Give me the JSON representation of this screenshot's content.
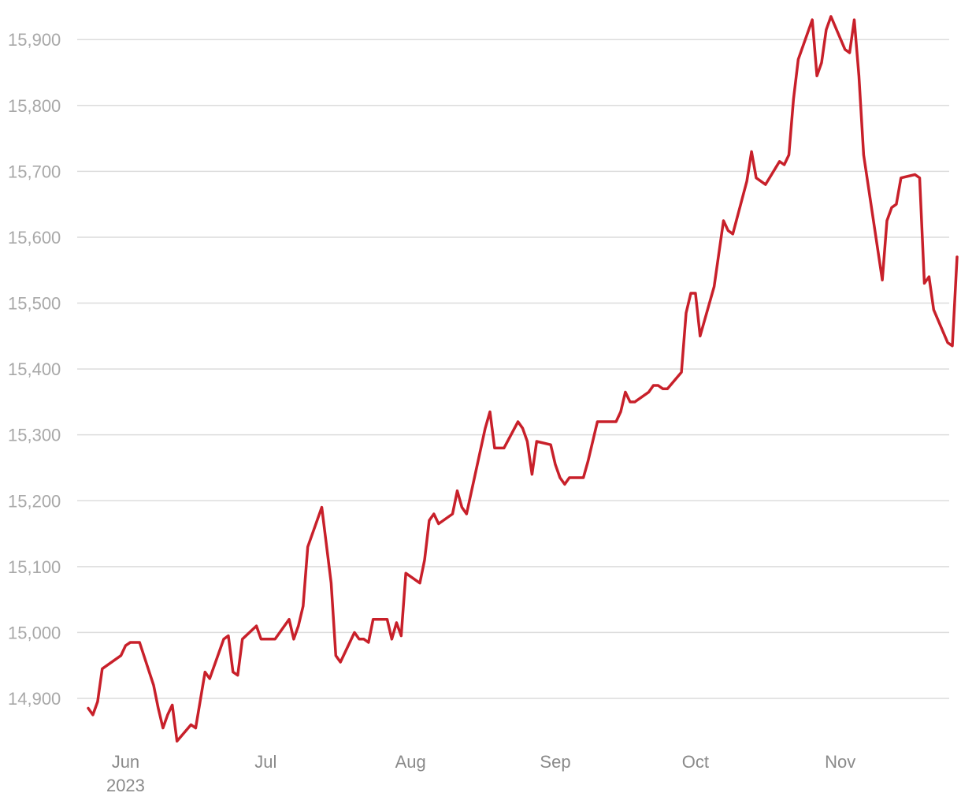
{
  "chart_data": {
    "type": "line",
    "title": "",
    "xlabel": "",
    "ylabel": "",
    "ylim": [
      14840,
      15940
    ],
    "y_ticks": [
      14900,
      15000,
      15100,
      15200,
      15300,
      15400,
      15500,
      15600,
      15700,
      15800,
      15900
    ],
    "y_tick_labels": [
      "14,900",
      "15,000",
      "15,100",
      "15,200",
      "15,300",
      "15,400",
      "15,500",
      "15,600",
      "15,700",
      "15,800",
      "15,900"
    ],
    "x_range": [
      "2023-05-24",
      "2023-11-27"
    ],
    "x_ticks": [
      {
        "date": "2023-06-01",
        "label": "Jun",
        "sublabel": "2023"
      },
      {
        "date": "2023-07-01",
        "label": "Jul",
        "sublabel": ""
      },
      {
        "date": "2023-08-01",
        "label": "Aug",
        "sublabel": ""
      },
      {
        "date": "2023-09-01",
        "label": "Sep",
        "sublabel": ""
      },
      {
        "date": "2023-10-01",
        "label": "Oct",
        "sublabel": ""
      },
      {
        "date": "2023-11-01",
        "label": "Nov",
        "sublabel": ""
      }
    ],
    "grid": true,
    "legend": "none",
    "series": [
      {
        "color": "#c8202a",
        "points": [
          [
            "2023-05-24",
            14885
          ],
          [
            "2023-05-25",
            14875
          ],
          [
            "2023-05-26",
            14895
          ],
          [
            "2023-05-27",
            14945
          ],
          [
            "2023-05-31",
            14965
          ],
          [
            "2023-06-01",
            14980
          ],
          [
            "2023-06-02",
            14985
          ],
          [
            "2023-06-03",
            14985
          ],
          [
            "2023-06-04",
            14985
          ],
          [
            "2023-06-07",
            14920
          ],
          [
            "2023-06-08",
            14885
          ],
          [
            "2023-06-09",
            14855
          ],
          [
            "2023-06-10",
            14875
          ],
          [
            "2023-06-11",
            14890
          ],
          [
            "2023-06-12",
            14835
          ],
          [
            "2023-06-15",
            14860
          ],
          [
            "2023-06-16",
            14855
          ],
          [
            "2023-06-18",
            14940
          ],
          [
            "2023-06-19",
            14930
          ],
          [
            "2023-06-22",
            14990
          ],
          [
            "2023-06-23",
            14995
          ],
          [
            "2023-06-24",
            14940
          ],
          [
            "2023-06-25",
            14935
          ],
          [
            "2023-06-26",
            14990
          ],
          [
            "2023-06-29",
            15010
          ],
          [
            "2023-06-30",
            14990
          ],
          [
            "2023-07-02",
            14990
          ],
          [
            "2023-07-03",
            14990
          ],
          [
            "2023-07-06",
            15020
          ],
          [
            "2023-07-07",
            14990
          ],
          [
            "2023-07-08",
            15010
          ],
          [
            "2023-07-09",
            15040
          ],
          [
            "2023-07-10",
            15130
          ],
          [
            "2023-07-13",
            15190
          ],
          [
            "2023-07-15",
            15075
          ],
          [
            "2023-07-16",
            14965
          ],
          [
            "2023-07-17",
            14955
          ],
          [
            "2023-07-20",
            15000
          ],
          [
            "2023-07-21",
            14990
          ],
          [
            "2023-07-22",
            14990
          ],
          [
            "2023-07-23",
            14985
          ],
          [
            "2023-07-24",
            15020
          ],
          [
            "2023-07-27",
            15020
          ],
          [
            "2023-07-28",
            14990
          ],
          [
            "2023-07-29",
            15015
          ],
          [
            "2023-07-30",
            14995
          ],
          [
            "2023-07-31",
            15090
          ],
          [
            "2023-08-03",
            15075
          ],
          [
            "2023-08-04",
            15110
          ],
          [
            "2023-08-05",
            15170
          ],
          [
            "2023-08-06",
            15180
          ],
          [
            "2023-08-07",
            15165
          ],
          [
            "2023-08-10",
            15180
          ],
          [
            "2023-08-11",
            15215
          ],
          [
            "2023-08-12",
            15190
          ],
          [
            "2023-08-13",
            15180
          ],
          [
            "2023-08-17",
            15310
          ],
          [
            "2023-08-18",
            15335
          ],
          [
            "2023-08-19",
            15280
          ],
          [
            "2023-08-21",
            15280
          ],
          [
            "2023-08-24",
            15320
          ],
          [
            "2023-08-25",
            15310
          ],
          [
            "2023-08-26",
            15290
          ],
          [
            "2023-08-27",
            15240
          ],
          [
            "2023-08-28",
            15290
          ],
          [
            "2023-08-31",
            15285
          ],
          [
            "2023-09-01",
            15255
          ],
          [
            "2023-09-02",
            15235
          ],
          [
            "2023-09-03",
            15225
          ],
          [
            "2023-09-04",
            15235
          ],
          [
            "2023-09-07",
            15235
          ],
          [
            "2023-09-08",
            15260
          ],
          [
            "2023-09-10",
            15320
          ],
          [
            "2023-09-14",
            15320
          ],
          [
            "2023-09-15",
            15335
          ],
          [
            "2023-09-16",
            15365
          ],
          [
            "2023-09-17",
            15350
          ],
          [
            "2023-09-18",
            15350
          ],
          [
            "2023-09-21",
            15365
          ],
          [
            "2023-09-22",
            15375
          ],
          [
            "2023-09-23",
            15375
          ],
          [
            "2023-09-24",
            15370
          ],
          [
            "2023-09-25",
            15370
          ],
          [
            "2023-09-28",
            15395
          ],
          [
            "2023-09-29",
            15485
          ],
          [
            "2023-09-30",
            15515
          ],
          [
            "2023-10-01",
            15515
          ],
          [
            "2023-10-02",
            15450
          ],
          [
            "2023-10-05",
            15525
          ],
          [
            "2023-10-07",
            15625
          ],
          [
            "2023-10-08",
            15610
          ],
          [
            "2023-10-09",
            15605
          ],
          [
            "2023-10-12",
            15685
          ],
          [
            "2023-10-13",
            15730
          ],
          [
            "2023-10-14",
            15690
          ],
          [
            "2023-10-16",
            15680
          ],
          [
            "2023-10-19",
            15715
          ],
          [
            "2023-10-20",
            15710
          ],
          [
            "2023-10-21",
            15725
          ],
          [
            "2023-10-22",
            15810
          ],
          [
            "2023-10-23",
            15870
          ],
          [
            "2023-10-26",
            15930
          ],
          [
            "2023-10-27",
            15845
          ],
          [
            "2023-10-28",
            15865
          ],
          [
            "2023-10-29",
            15915
          ],
          [
            "2023-10-30",
            15935
          ],
          [
            "2023-11-02",
            15885
          ],
          [
            "2023-11-03",
            15880
          ],
          [
            "2023-11-04",
            15930
          ],
          [
            "2023-11-05",
            15845
          ],
          [
            "2023-11-06",
            15725
          ],
          [
            "2023-11-10",
            15535
          ],
          [
            "2023-11-11",
            15625
          ],
          [
            "2023-11-12",
            15645
          ],
          [
            "2023-11-13",
            15650
          ],
          [
            "2023-11-14",
            15690
          ],
          [
            "2023-11-17",
            15695
          ],
          [
            "2023-11-18",
            15690
          ],
          [
            "2023-11-19",
            15530
          ],
          [
            "2023-11-20",
            15540
          ],
          [
            "2023-11-21",
            15490
          ],
          [
            "2023-11-24",
            15440
          ],
          [
            "2023-11-25",
            15435
          ],
          [
            "2023-11-26",
            15570
          ]
        ]
      }
    ]
  }
}
